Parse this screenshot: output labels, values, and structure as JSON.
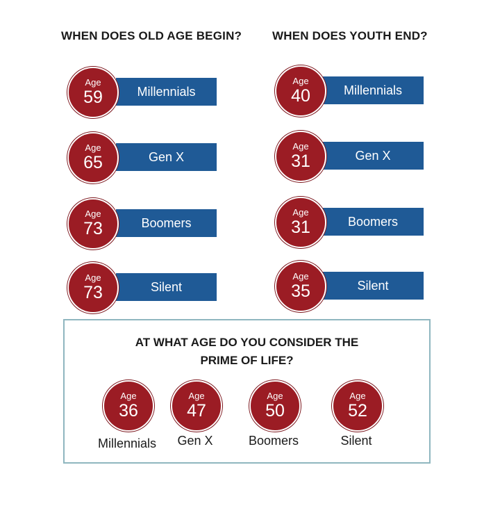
{
  "old_age": {
    "title": "WHEN DOES OLD AGE BEGIN?",
    "items": [
      {
        "age_label": "Age",
        "age": "59",
        "generation": "Millennials"
      },
      {
        "age_label": "Age",
        "age": "65",
        "generation": "Gen X"
      },
      {
        "age_label": "Age",
        "age": "73",
        "generation": "Boomers"
      },
      {
        "age_label": "Age",
        "age": "73",
        "generation": "Silent"
      }
    ]
  },
  "youth_end": {
    "title": "WHEN DOES YOUTH END?",
    "items": [
      {
        "age_label": "Age",
        "age": "40",
        "generation": "Millennials"
      },
      {
        "age_label": "Age",
        "age": "31",
        "generation": "Gen X"
      },
      {
        "age_label": "Age",
        "age": "31",
        "generation": "Boomers"
      },
      {
        "age_label": "Age",
        "age": "35",
        "generation": "Silent"
      }
    ]
  },
  "prime_of_life": {
    "title_line1": "AT WHAT AGE DO YOU CONSIDER THE",
    "title_line2": "PRIME OF LIFE?",
    "items": [
      {
        "age_label": "Age",
        "age": "36",
        "generation": "Millennials"
      },
      {
        "age_label": "Age",
        "age": "47",
        "generation": "Gen X"
      },
      {
        "age_label": "Age",
        "age": "50",
        "generation": "Boomers"
      },
      {
        "age_label": "Age",
        "age": "52",
        "generation": "Silent"
      }
    ]
  },
  "colors": {
    "circle": "#9b1c24",
    "bar": "#1f5a96",
    "box_border": "#8fb6bf"
  }
}
